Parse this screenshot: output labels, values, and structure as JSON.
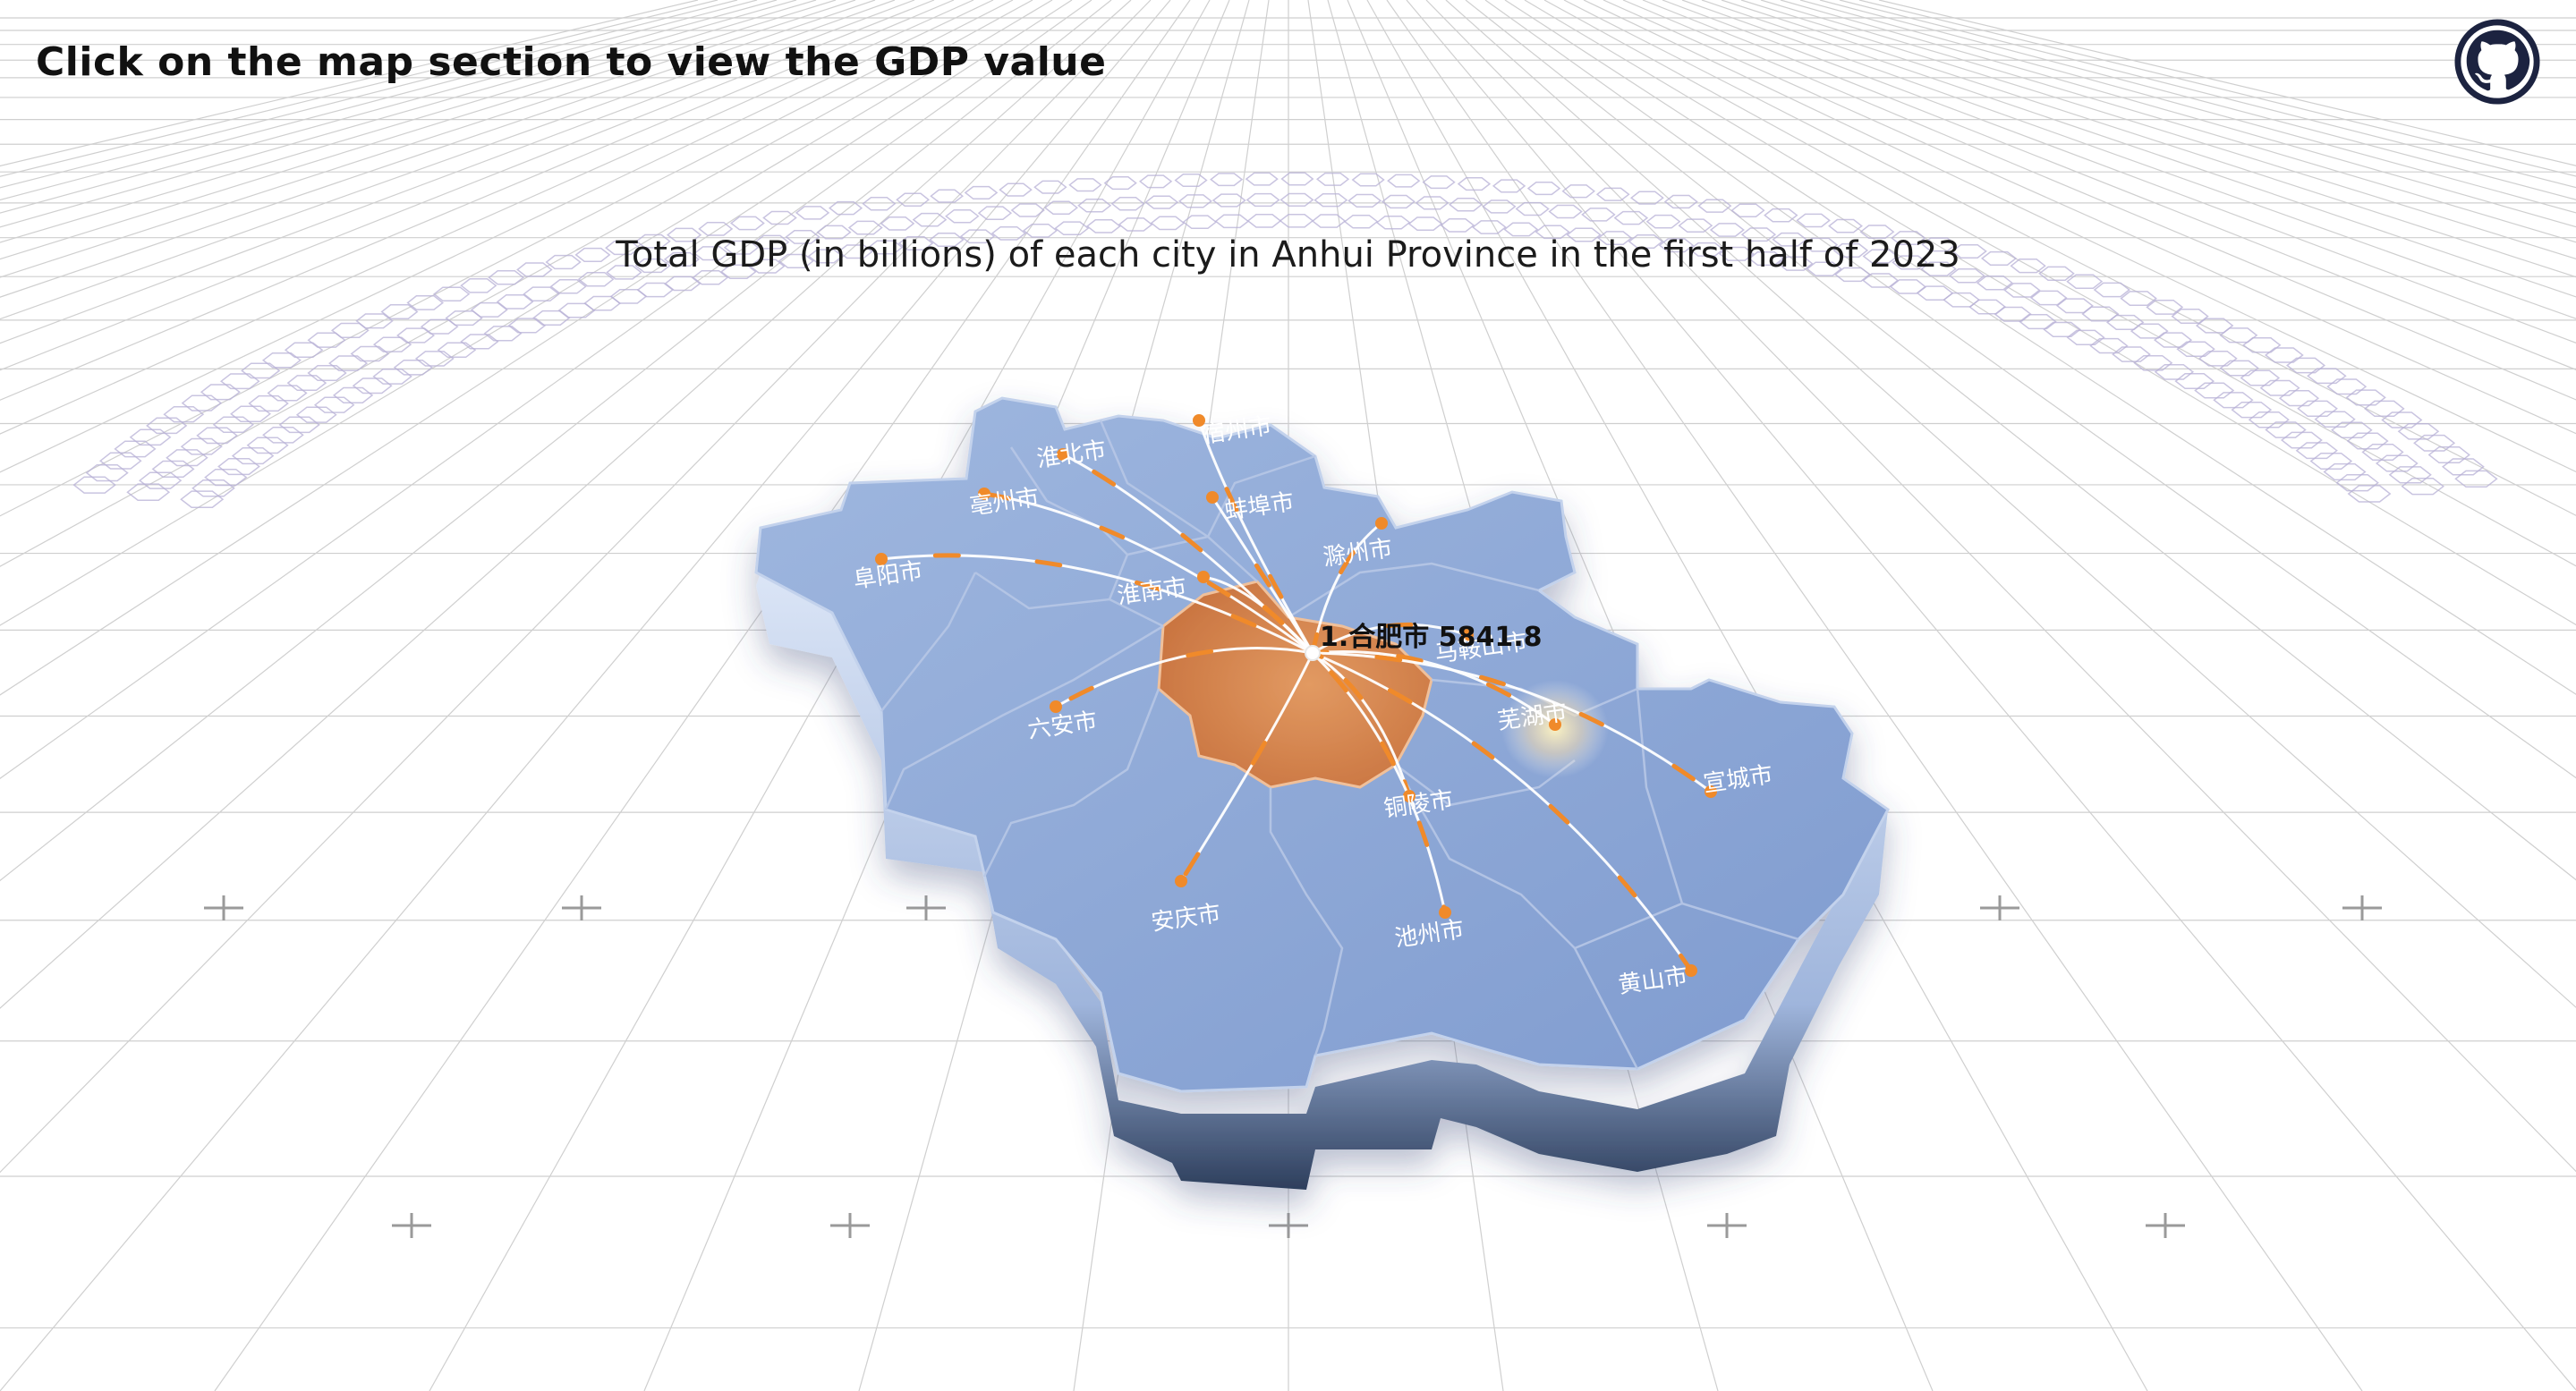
{
  "header": {
    "hint": "Click on the map section to view the GDP value",
    "github_icon": "github-icon"
  },
  "chart": {
    "title": "Total GDP (in billions) of each city in Anhui Province in the first half of 2023"
  },
  "colors": {
    "map_fill": "#8fa9d6",
    "map_side": "#c9d6ee",
    "highlight_fill": "#d9824a",
    "flow_line": "#ffffff",
    "flow_dot": "#f08a2a",
    "grid": "#c9c9c9"
  },
  "map": {
    "region": "Anhui Province",
    "hub": "合肥市",
    "cities": [
      {
        "id": "hefei",
        "name": "合肥市"
      },
      {
        "id": "suzhou",
        "name": "宿州市"
      },
      {
        "id": "huaibei",
        "name": "淮北市"
      },
      {
        "id": "bozhou",
        "name": "亳州市"
      },
      {
        "id": "bengbu",
        "name": "蚌埠市"
      },
      {
        "id": "chuzhou",
        "name": "滁州市"
      },
      {
        "id": "fuyang",
        "name": "阜阳市"
      },
      {
        "id": "huainan",
        "name": "淮南市"
      },
      {
        "id": "luan",
        "name": "六安市"
      },
      {
        "id": "maanshan",
        "name": "马鞍山市"
      },
      {
        "id": "wuhu",
        "name": "芜湖市"
      },
      {
        "id": "xuancheng",
        "name": "宣城市"
      },
      {
        "id": "tongling",
        "name": "铜陵市"
      },
      {
        "id": "anqing",
        "name": "安庆市"
      },
      {
        "id": "chizhou",
        "name": "池州市"
      },
      {
        "id": "huangshan",
        "name": "黄山市"
      }
    ],
    "highlight": {
      "name": "合肥市",
      "rank": "1",
      "gdp": "5841.8",
      "label": "1.合肥市 5841.8"
    }
  }
}
